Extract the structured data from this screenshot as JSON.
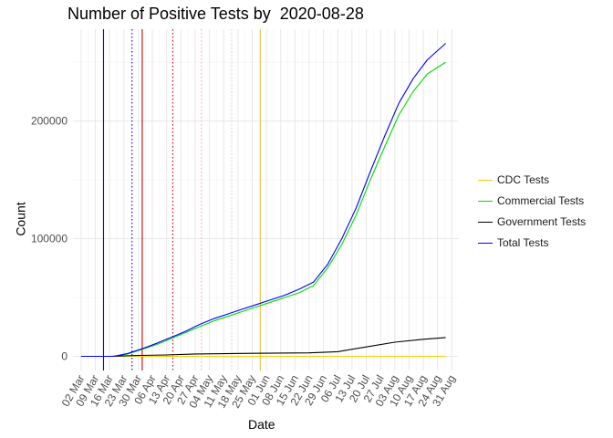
{
  "chart_data": {
    "type": "line",
    "title": "Number of Positive Tests by  2020-08-28",
    "xlabel": "Date",
    "ylabel": "Count",
    "x_range": [
      "2020-02-27",
      "2020-09-03"
    ],
    "ylim": [
      -12000,
      278000
    ],
    "grid": true,
    "legend_position": "right",
    "y_ticks": [
      0,
      100000,
      200000
    ],
    "y_tick_labels": [
      "0",
      "100000",
      "200000"
    ],
    "x_ticks": [
      "2020-03-02",
      "2020-03-09",
      "2020-03-16",
      "2020-03-23",
      "2020-03-30",
      "2020-04-06",
      "2020-04-13",
      "2020-04-20",
      "2020-04-27",
      "2020-05-04",
      "2020-05-11",
      "2020-05-18",
      "2020-05-25",
      "2020-06-01",
      "2020-06-08",
      "2020-06-15",
      "2020-06-22",
      "2020-06-29",
      "2020-07-06",
      "2020-07-13",
      "2020-07-20",
      "2020-07-27",
      "2020-08-03",
      "2020-08-10",
      "2020-08-17",
      "2020-08-24",
      "2020-08-31"
    ],
    "x_tick_labels": [
      "02 Mar",
      "09 Mar",
      "16 Mar",
      "23 Mar",
      "30 Mar",
      "06 Apr",
      "13 Apr",
      "20 Apr",
      "27 Apr",
      "04 May",
      "11 May",
      "18 May",
      "25 May",
      "01 Jun",
      "08 Jun",
      "15 Jun",
      "22 Jun",
      "29 Jun",
      "06 Jul",
      "13 Jul",
      "20 Jul",
      "27 Jul",
      "03 Aug",
      "10 Aug",
      "17 Aug",
      "24 Aug",
      "31 Aug"
    ],
    "vertical_lines": [
      {
        "date": "2020-03-13",
        "color": "#0000ff",
        "style": "solid"
      },
      {
        "date": "2020-03-27",
        "color": "#0000ff",
        "style": "dotted"
      },
      {
        "date": "2020-04-01",
        "color": "#cc0000",
        "style": "solid"
      },
      {
        "date": "2020-04-16",
        "color": "#cc0000",
        "style": "dotted"
      },
      {
        "date": "2020-04-30",
        "color": "#ffb0b0",
        "style": "dotted"
      },
      {
        "date": "2020-05-15",
        "color": "#d8d8d8",
        "style": "dotted"
      },
      {
        "date": "2020-05-29",
        "color": "#e6c84a",
        "style": "solid"
      }
    ],
    "series": [
      {
        "name": "CDC Tests",
        "color": "#ffcc00",
        "x": [
          "2020-03-18",
          "2020-04-15",
          "2020-05-15",
          "2020-06-15",
          "2020-07-15",
          "2020-08-15",
          "2020-08-28"
        ],
        "y": [
          0,
          0,
          0,
          0,
          0,
          0,
          0
        ]
      },
      {
        "name": "Commercial Tests",
        "color": "#00dd00",
        "x": [
          "2020-03-18",
          "2020-03-25",
          "2020-04-01",
          "2020-04-08",
          "2020-04-15",
          "2020-04-22",
          "2020-04-29",
          "2020-05-06",
          "2020-05-13",
          "2020-05-20",
          "2020-05-27",
          "2020-06-03",
          "2020-06-10",
          "2020-06-17",
          "2020-06-24",
          "2020-07-01",
          "2020-07-08",
          "2020-07-15",
          "2020-07-22",
          "2020-07-29",
          "2020-08-05",
          "2020-08-12",
          "2020-08-19",
          "2020-08-28"
        ],
        "y": [
          0,
          2000,
          6000,
          10000,
          15000,
          20000,
          25000,
          30000,
          34000,
          38000,
          42000,
          46000,
          50000,
          54000,
          60000,
          75000,
          95000,
          120000,
          150000,
          178000,
          205000,
          225000,
          240000,
          250000
        ]
      },
      {
        "name": "Government Tests",
        "color": "#000000",
        "x": [
          "2020-03-02",
          "2020-03-16",
          "2020-03-30",
          "2020-04-13",
          "2020-04-27",
          "2020-05-11",
          "2020-05-25",
          "2020-06-08",
          "2020-06-22",
          "2020-07-06",
          "2020-07-20",
          "2020-08-03",
          "2020-08-17",
          "2020-08-28"
        ],
        "y": [
          0,
          0,
          800,
          1200,
          2000,
          2300,
          2600,
          2800,
          3000,
          4000,
          8000,
          12000,
          14500,
          16000
        ]
      },
      {
        "name": "Total Tests",
        "color": "#0000ff",
        "x": [
          "2020-03-02",
          "2020-03-18",
          "2020-03-25",
          "2020-04-01",
          "2020-04-08",
          "2020-04-15",
          "2020-04-22",
          "2020-04-29",
          "2020-05-06",
          "2020-05-13",
          "2020-05-20",
          "2020-05-27",
          "2020-06-03",
          "2020-06-10",
          "2020-06-17",
          "2020-06-24",
          "2020-07-01",
          "2020-07-08",
          "2020-07-15",
          "2020-07-22",
          "2020-07-29",
          "2020-08-05",
          "2020-08-12",
          "2020-08-19",
          "2020-08-28"
        ],
        "y": [
          0,
          0,
          2500,
          6500,
          11000,
          16000,
          21000,
          27000,
          32000,
          36000,
          40000,
          44000,
          48000,
          52000,
          57000,
          63000,
          78000,
          100000,
          126000,
          157000,
          187000,
          215000,
          236000,
          252000,
          266000
        ]
      }
    ]
  }
}
